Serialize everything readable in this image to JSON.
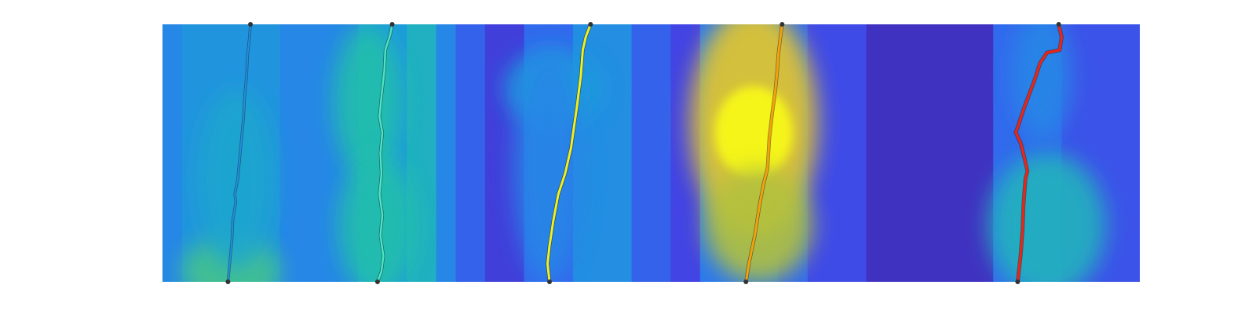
{
  "chart_data": {
    "type": "heatmap",
    "colormap": "parula",
    "colormap_stops": [
      "#3e26a8",
      "#4245e6",
      "#2d76ef",
      "#1ca0d8",
      "#24bfab",
      "#7bcb5b",
      "#d6ba29",
      "#fddc2c",
      "#f9fb15"
    ],
    "title": "",
    "xlabel": "",
    "ylabel": "",
    "axes_visible": false,
    "colorbar": false,
    "background_blocks": [
      {
        "x0": 0.0,
        "x1": 0.02,
        "y0": 0.0,
        "y1": 1.0,
        "value": 0.3
      },
      {
        "x0": 0.02,
        "x1": 0.12,
        "y0": 0.0,
        "y1": 1.0,
        "value": 0.34
      },
      {
        "x0": 0.12,
        "x1": 0.2,
        "y0": 0.0,
        "y1": 1.0,
        "value": 0.3
      },
      {
        "x0": 0.2,
        "x1": 0.25,
        "y0": 0.0,
        "y1": 1.0,
        "value": 0.36
      },
      {
        "x0": 0.25,
        "x1": 0.28,
        "y0": 0.0,
        "y1": 1.0,
        "value": 0.44
      },
      {
        "x0": 0.28,
        "x1": 0.3,
        "y0": 0.0,
        "y1": 1.0,
        "value": 0.3
      },
      {
        "x0": 0.3,
        "x1": 0.33,
        "y0": 0.0,
        "y1": 1.0,
        "value": 0.2
      },
      {
        "x0": 0.33,
        "x1": 0.37,
        "y0": 0.0,
        "y1": 1.0,
        "value": 0.1
      },
      {
        "x0": 0.37,
        "x1": 0.42,
        "y0": 0.0,
        "y1": 1.0,
        "value": 0.22
      },
      {
        "x0": 0.42,
        "x1": 0.48,
        "y0": 0.0,
        "y1": 1.0,
        "value": 0.32
      },
      {
        "x0": 0.48,
        "x1": 0.52,
        "y0": 0.0,
        "y1": 1.0,
        "value": 0.2
      },
      {
        "x0": 0.52,
        "x1": 0.55,
        "y0": 0.0,
        "y1": 1.0,
        "value": 0.12
      },
      {
        "x0": 0.55,
        "x1": 0.63,
        "y0": 0.0,
        "y1": 1.0,
        "value": 0.26
      },
      {
        "x0": 0.63,
        "x1": 0.66,
        "y0": 0.0,
        "y1": 1.0,
        "value": 0.22
      },
      {
        "x0": 0.66,
        "x1": 0.72,
        "y0": 0.0,
        "y1": 1.0,
        "value": 0.14
      },
      {
        "x0": 0.72,
        "x1": 0.85,
        "y0": 0.0,
        "y1": 1.0,
        "value": 0.05
      },
      {
        "x0": 0.85,
        "x1": 0.92,
        "y0": 0.0,
        "y1": 1.0,
        "value": 0.22
      },
      {
        "x0": 0.92,
        "x1": 1.0,
        "y0": 0.0,
        "y1": 1.0,
        "value": 0.16
      }
    ],
    "hotspots": [
      {
        "cx": 0.07,
        "cy": 0.96,
        "rx": 0.05,
        "ry": 0.14,
        "value": 0.55
      },
      {
        "cx": 0.075,
        "cy": 0.6,
        "rx": 0.04,
        "ry": 0.35,
        "value": 0.4
      },
      {
        "cx": 0.21,
        "cy": 0.3,
        "rx": 0.035,
        "ry": 0.3,
        "value": 0.5
      },
      {
        "cx": 0.22,
        "cy": 0.78,
        "rx": 0.04,
        "ry": 0.28,
        "value": 0.5
      },
      {
        "cx": 0.4,
        "cy": 0.25,
        "rx": 0.05,
        "ry": 0.15,
        "value": 0.36
      },
      {
        "cx": 0.395,
        "cy": 0.55,
        "rx": 0.035,
        "ry": 0.45,
        "value": 0.3
      },
      {
        "cx": 0.605,
        "cy": 0.38,
        "rx": 0.065,
        "ry": 0.45,
        "value": 0.8
      },
      {
        "cx": 0.605,
        "cy": 0.42,
        "rx": 0.04,
        "ry": 0.18,
        "value": 1.0
      },
      {
        "cx": 0.61,
        "cy": 0.78,
        "rx": 0.055,
        "ry": 0.22,
        "value": 0.7
      },
      {
        "cx": 0.905,
        "cy": 0.78,
        "rx": 0.06,
        "ry": 0.28,
        "value": 0.45
      },
      {
        "cx": 0.9,
        "cy": 0.2,
        "rx": 0.03,
        "ry": 0.25,
        "value": 0.3
      }
    ],
    "series": [
      {
        "color": "#1f8fe6",
        "width": 2,
        "points": [
          [
            0.09,
            0.0
          ],
          [
            0.089,
            0.05
          ],
          [
            0.087,
            0.12
          ],
          [
            0.086,
            0.2
          ],
          [
            0.084,
            0.28
          ],
          [
            0.083,
            0.36
          ],
          [
            0.08,
            0.48
          ],
          [
            0.077,
            0.6
          ],
          [
            0.074,
            0.66
          ],
          [
            0.075,
            0.69
          ],
          [
            0.072,
            0.76
          ],
          [
            0.071,
            0.84
          ],
          [
            0.069,
            0.92
          ],
          [
            0.067,
            1.0
          ]
        ]
      },
      {
        "color": "#48e6c5",
        "width": 2.5,
        "points": [
          [
            0.235,
            0.0
          ],
          [
            0.233,
            0.04
          ],
          [
            0.228,
            0.1
          ],
          [
            0.227,
            0.18
          ],
          [
            0.224,
            0.28
          ],
          [
            0.222,
            0.36
          ],
          [
            0.225,
            0.42
          ],
          [
            0.223,
            0.5
          ],
          [
            0.224,
            0.58
          ],
          [
            0.222,
            0.66
          ],
          [
            0.225,
            0.74
          ],
          [
            0.223,
            0.82
          ],
          [
            0.226,
            0.9
          ],
          [
            0.224,
            0.96
          ],
          [
            0.22,
            1.0
          ]
        ]
      },
      {
        "color": "#f0f01e",
        "width": 3,
        "points": [
          [
            0.438,
            0.0
          ],
          [
            0.433,
            0.05
          ],
          [
            0.43,
            0.1
          ],
          [
            0.428,
            0.2
          ],
          [
            0.424,
            0.32
          ],
          [
            0.418,
            0.48
          ],
          [
            0.412,
            0.58
          ],
          [
            0.405,
            0.66
          ],
          [
            0.4,
            0.76
          ],
          [
            0.396,
            0.86
          ],
          [
            0.394,
            0.93
          ],
          [
            0.396,
            1.0
          ]
        ]
      },
      {
        "color": "#f5a20a",
        "width": 3,
        "points": [
          [
            0.634,
            0.0
          ],
          [
            0.632,
            0.06
          ],
          [
            0.63,
            0.12
          ],
          [
            0.629,
            0.18
          ],
          [
            0.627,
            0.26
          ],
          [
            0.624,
            0.34
          ],
          [
            0.621,
            0.44
          ],
          [
            0.62,
            0.5
          ],
          [
            0.619,
            0.56
          ],
          [
            0.615,
            0.62
          ],
          [
            0.611,
            0.7
          ],
          [
            0.606,
            0.82
          ],
          [
            0.6,
            0.93
          ],
          [
            0.597,
            1.0
          ]
        ]
      },
      {
        "color": "#e8251a",
        "width": 3.5,
        "points": [
          [
            0.917,
            0.0
          ],
          [
            0.92,
            0.05
          ],
          [
            0.918,
            0.1
          ],
          [
            0.905,
            0.11
          ],
          [
            0.898,
            0.15
          ],
          [
            0.892,
            0.22
          ],
          [
            0.882,
            0.32
          ],
          [
            0.875,
            0.4
          ],
          [
            0.873,
            0.42
          ],
          [
            0.878,
            0.46
          ],
          [
            0.882,
            0.52
          ],
          [
            0.885,
            0.57
          ],
          [
            0.883,
            0.6
          ],
          [
            0.881,
            0.7
          ],
          [
            0.88,
            0.8
          ],
          [
            0.878,
            0.9
          ],
          [
            0.875,
            1.0
          ]
        ]
      }
    ]
  }
}
